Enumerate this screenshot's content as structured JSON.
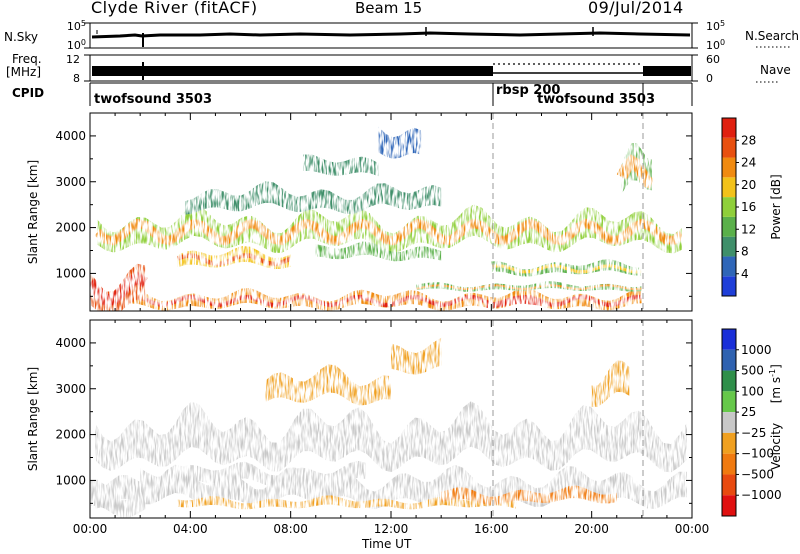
{
  "header": {
    "title": "Clyde River (fitACF)",
    "beam": "Beam 15",
    "date": "09/Jul/2014"
  },
  "colors": {
    "power": [
      "#1f3fd8",
      "#2f66b8",
      "#3f8f6a",
      "#5ab04a",
      "#8fcf3a",
      "#f2c21a",
      "#f08a10",
      "#e85010",
      "#e02010"
    ],
    "velocity": [
      "#1a2fd8",
      "#2f62b0",
      "#2f8f4a",
      "#66c84a",
      "#c8c8c8",
      "#f0a020",
      "#f07a10",
      "#e84a10",
      "#e01010"
    ],
    "ground_scatter": "#c8c8c8"
  },
  "left_labels": {
    "nsky": "N.Sky",
    "freq_line1": "Freq.",
    "freq_line2": "[MHz]",
    "cpid": "CPID"
  },
  "right_labels": {
    "nsearch": "N.Search",
    "nave": "Nave"
  },
  "nsky_ticks": {
    "top": "10^5",
    "bottom": "10^0"
  },
  "nsearch_ticks": {
    "top": "10^5",
    "bottom": "10^0"
  },
  "freq_ticks": {
    "top": "12",
    "bottom": "8"
  },
  "nave_ticks": {
    "top": "60",
    "bottom": "0"
  },
  "cpid_segments": [
    {
      "label": "twofsound 3503",
      "start_hour": 0,
      "end_hour": 16
    },
    {
      "label": "rbsp 200",
      "start_hour": 16,
      "end_hour": 22
    },
    {
      "label": "twofsound 3503",
      "start_hour": 22,
      "end_hour": 24
    }
  ],
  "mode_change_hours": [
    16,
    22
  ],
  "power_colorbar": {
    "label": "Power [dB]",
    "ticks": [
      "4",
      "8",
      "12",
      "16",
      "20",
      "24",
      "28"
    ]
  },
  "velocity_colorbar": {
    "label": "Velocity [m s^-1]",
    "label_text": "Velocity",
    "label_unit": "[m s",
    "label_exp": "-1",
    "label_close": "]",
    "ticks": [
      "1000",
      "500",
      "100",
      "25",
      "−25",
      "−100",
      "−500",
      "−1000"
    ]
  },
  "x_axis": {
    "label": "Time UT",
    "ticks": [
      "00:00",
      "04:00",
      "08:00",
      "12:00",
      "16:00",
      "20:00",
      "00:00"
    ]
  },
  "chart_data": [
    {
      "type": "heatmap",
      "title": "Clyde River (fitACF) Beam 15 09/Jul/2014",
      "xlabel": "Time UT",
      "ylabel": "Slant Range [km]",
      "yticks": [
        "1000",
        "2000",
        "3000",
        "4000"
      ],
      "xlim": [
        0,
        24
      ],
      "ylim": [
        180,
        4500
      ],
      "colorbar": "Power [dB]",
      "clim": [
        0,
        32
      ],
      "series": [
        {
          "name": "band_1",
          "time_start": 0.3,
          "time_end": 23.6,
          "range_center": 1900,
          "range_width": 550,
          "value": 16
        },
        {
          "name": "band_2",
          "time_start": 3.8,
          "time_end": 14,
          "range_center": 2600,
          "range_width": 380,
          "value": 8
        },
        {
          "name": "band_3",
          "time_start": 3.5,
          "time_end": 8,
          "range_center": 1300,
          "range_width": 280,
          "value": 18
        },
        {
          "name": "band_4",
          "time_start": 9,
          "time_end": 14,
          "range_center": 1450,
          "range_width": 240,
          "value": 11
        },
        {
          "name": "band_5",
          "time_start": 0.3,
          "time_end": 22,
          "range_center": 400,
          "range_width": 260,
          "value": 22
        },
        {
          "name": "band_6",
          "time_start": 13,
          "time_end": 22,
          "range_center": 700,
          "range_width": 120,
          "value": 14
        },
        {
          "name": "band_7",
          "time_start": 16,
          "time_end": 22,
          "range_center": 1100,
          "range_width": 200,
          "value": 13
        },
        {
          "name": "band_8",
          "time_start": 0,
          "time_end": 2.2,
          "range_center": 650,
          "range_width": 700,
          "value": 26
        },
        {
          "name": "band_9",
          "time_start": 15.8,
          "time_end": 18,
          "range_center": 380,
          "range_width": 160,
          "value": 30
        },
        {
          "name": "band_10",
          "time_start": 21.2,
          "time_end": 22.4,
          "range_center": 3200,
          "range_width": 700,
          "value": 14
        },
        {
          "name": "band_11",
          "time_start": 8.5,
          "time_end": 11.5,
          "range_center": 3300,
          "range_width": 300,
          "value": 9
        },
        {
          "name": "band_12",
          "time_start": 11.5,
          "time_end": 13.2,
          "range_center": 3800,
          "range_width": 500,
          "value": 6
        }
      ]
    },
    {
      "type": "heatmap",
      "xlabel": "Time UT",
      "ylabel": "Slant Range [km]",
      "yticks": [
        "1000",
        "2000",
        "3000",
        "4000"
      ],
      "xlim": [
        0,
        24
      ],
      "ylim": [
        180,
        4500
      ],
      "colorbar": "Velocity [m s^-1]",
      "clim": [
        -1000,
        1000
      ],
      "series": [
        {
          "name": "band_1",
          "time_start": 0.2,
          "time_end": 23.8,
          "range_center": 1850,
          "range_width": 800,
          "value": 0
        },
        {
          "name": "band_2",
          "time_start": 0.2,
          "time_end": 23.8,
          "range_center": 800,
          "range_width": 500,
          "value": 0
        },
        {
          "name": "band_3",
          "time_start": 7,
          "time_end": 12,
          "range_center": 3000,
          "range_width": 500,
          "value": -200
        },
        {
          "name": "band_4",
          "time_start": 12,
          "time_end": 14,
          "range_center": 3600,
          "range_width": 500,
          "value": -200
        },
        {
          "name": "band_5",
          "time_start": 3.5,
          "time_end": 17,
          "range_center": 500,
          "range_width": 160,
          "value": -150
        },
        {
          "name": "band_6",
          "time_start": 14,
          "time_end": 21,
          "range_center": 650,
          "range_width": 220,
          "value": -400
        },
        {
          "name": "band_7",
          "time_start": 0,
          "time_end": 2.2,
          "range_center": 600,
          "range_width": 500,
          "value": 50
        },
        {
          "name": "band_8",
          "time_start": 2,
          "time_end": 11,
          "range_center": 1100,
          "range_width": 300,
          "value": 60
        },
        {
          "name": "band_9",
          "time_start": 20,
          "time_end": 21.5,
          "range_center": 3100,
          "range_width": 600,
          "value": -200
        }
      ]
    }
  ]
}
